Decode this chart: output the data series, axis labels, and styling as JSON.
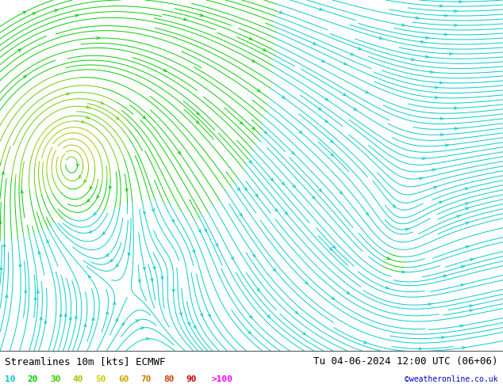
{
  "title_left": "Streamlines 10m [kts] ECMWF",
  "title_right": "Tu 04-06-2024 12:00 UTC (06+06)",
  "credit": "©weatheronline.co.uk",
  "legend_values": [
    "10",
    "20",
    "30",
    "40",
    "50",
    "60",
    "70",
    "80",
    "90",
    ">100"
  ],
  "legend_colors": [
    "#00cccc",
    "#00cc00",
    "#33cc00",
    "#99cc00",
    "#cccc00",
    "#ccaa00",
    "#cc7700",
    "#cc4400",
    "#cc0000",
    "#ff00ff"
  ],
  "bg_color": "#d8d8d8",
  "land_color": "#ccffcc",
  "ocean_color": "#d8d8d8",
  "coast_color": "#222222",
  "title_fontsize": 9,
  "legend_fontsize": 8,
  "figsize": [
    6.34,
    4.9
  ],
  "dpi": 100,
  "lon_min": -15,
  "lon_max": 42,
  "lat_min": 49,
  "lat_max": 75,
  "cyclone_lon": -7,
  "cyclone_lat": 63,
  "cyclone_strength": 18,
  "bg_u": 1.5,
  "bg_v": 0.5,
  "speed_bounds": [
    0,
    10,
    20,
    30,
    40,
    50,
    60,
    70,
    80,
    90,
    300
  ],
  "stream_colors": [
    "#00cccc",
    "#00cc00",
    "#66cc00",
    "#99cc00",
    "#cccc00",
    "#ccaa00",
    "#cc7700",
    "#cc4400",
    "#cc0000",
    "#ff00ff"
  ]
}
